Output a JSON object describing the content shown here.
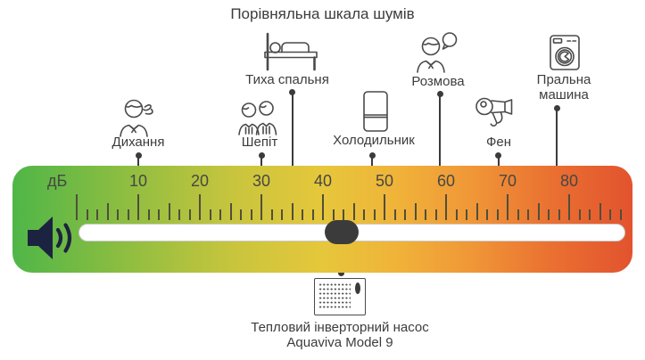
{
  "title": "Порівняльна шкала шумів",
  "scale": {
    "unit_label": "дБ",
    "min_db": 0,
    "max_db": 90,
    "major_tick_values": [
      10,
      20,
      30,
      40,
      50,
      60,
      70,
      80
    ],
    "gradient_colors": [
      "#4fb648",
      "#c9c53d",
      "#e6c73b",
      "#f0b339",
      "#e2532e"
    ],
    "connector_color": "#3b3b3b",
    "handle_color": "#3b3b3b"
  },
  "sources": [
    {
      "name": "breathing",
      "label": "Дихання",
      "db": 10,
      "icon": "breathing-person-icon"
    },
    {
      "name": "whisper",
      "label": "Шепіт",
      "db": 30,
      "icon": "two-people-whisper-icon"
    },
    {
      "name": "quiet-bedroom",
      "label": "Тиха спальня",
      "db": 35,
      "icon": "bed-icon"
    },
    {
      "name": "refrigerator",
      "label": "Холодильник",
      "db": 48,
      "icon": "refrigerator-icon"
    },
    {
      "name": "conversation",
      "label": "Розмова",
      "db": 59,
      "icon": "person-speech-bubble-icon"
    },
    {
      "name": "hair-dryer",
      "label": "Фен",
      "db": 68.5,
      "icon": "hair-dryer-icon"
    },
    {
      "name": "washing-machine",
      "label": "Пральна машина",
      "db": 78,
      "icon": "washing-machine-icon"
    }
  ],
  "marker": {
    "name": "heat-pump",
    "label": "Тепловий інверторний насос Aquaviva Model 9",
    "db": 43,
    "icon": "heat-pump-icon"
  }
}
